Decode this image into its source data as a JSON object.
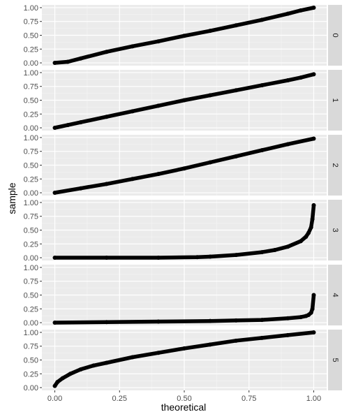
{
  "chart_data": {
    "type": "line",
    "subtype": "qq-plot",
    "xlabel": "theoretical",
    "ylabel": "sample",
    "xlim": [
      0,
      1
    ],
    "x_ticks": [
      0.0,
      0.25,
      0.5,
      0.75,
      1.0
    ],
    "x_tick_labels": [
      "0.00",
      "0.25",
      "0.50",
      "0.75",
      "1.00"
    ],
    "y_ticks": [
      0.0,
      0.25,
      0.5,
      0.75,
      1.0
    ],
    "y_tick_labels": [
      "0.00",
      "0.25",
      "0.50",
      "0.75",
      "1.00"
    ],
    "grid": true,
    "facets": [
      {
        "label": "0",
        "ylim": [
          0,
          1.0
        ],
        "series": {
          "x": [
            0,
            0.05,
            0.1,
            0.2,
            0.3,
            0.4,
            0.5,
            0.6,
            0.7,
            0.8,
            0.9,
            0.95,
            1.0
          ],
          "y": [
            0.0,
            0.02,
            0.08,
            0.2,
            0.3,
            0.39,
            0.49,
            0.58,
            0.68,
            0.78,
            0.89,
            0.95,
            1.0
          ]
        }
      },
      {
        "label": "1",
        "ylim": [
          0,
          1.0
        ],
        "series": {
          "x": [
            0,
            0.05,
            0.1,
            0.2,
            0.3,
            0.4,
            0.5,
            0.6,
            0.7,
            0.8,
            0.9,
            0.95,
            1.0
          ],
          "y": [
            0.0,
            0.05,
            0.1,
            0.2,
            0.3,
            0.4,
            0.5,
            0.59,
            0.68,
            0.77,
            0.86,
            0.91,
            0.97
          ]
        }
      },
      {
        "label": "2",
        "ylim": [
          0,
          1.0
        ],
        "series": {
          "x": [
            0,
            0.1,
            0.2,
            0.3,
            0.4,
            0.5,
            0.6,
            0.7,
            0.8,
            0.9,
            1.0
          ],
          "y": [
            0.0,
            0.08,
            0.16,
            0.25,
            0.34,
            0.44,
            0.55,
            0.66,
            0.77,
            0.88,
            0.98
          ]
        }
      },
      {
        "label": "3",
        "ylim": [
          0,
          1.0
        ],
        "series": {
          "x": [
            0,
            0.2,
            0.4,
            0.55,
            0.6,
            0.7,
            0.8,
            0.85,
            0.9,
            0.95,
            0.97,
            0.98,
            0.99,
            0.995,
            1.0
          ],
          "y": [
            0.0,
            0.0,
            0.0,
            0.01,
            0.02,
            0.05,
            0.1,
            0.14,
            0.2,
            0.3,
            0.38,
            0.45,
            0.55,
            0.7,
            0.95
          ]
        }
      },
      {
        "label": "4",
        "ylim": [
          0,
          1.0
        ],
        "series": {
          "x": [
            0,
            0.2,
            0.4,
            0.6,
            0.7,
            0.8,
            0.9,
            0.95,
            0.97,
            0.98,
            0.99,
            0.995,
            1.0
          ],
          "y": [
            0.0,
            0.01,
            0.02,
            0.03,
            0.04,
            0.05,
            0.08,
            0.1,
            0.12,
            0.14,
            0.18,
            0.25,
            0.5
          ]
        }
      },
      {
        "label": "5",
        "ylim": [
          0,
          1.0
        ],
        "series": {
          "x": [
            0,
            0.01,
            0.03,
            0.06,
            0.1,
            0.15,
            0.2,
            0.3,
            0.4,
            0.5,
            0.6,
            0.7,
            0.8,
            0.9,
            1.0
          ],
          "y": [
            0.03,
            0.1,
            0.17,
            0.25,
            0.33,
            0.4,
            0.45,
            0.55,
            0.63,
            0.71,
            0.78,
            0.85,
            0.9,
            0.95,
            1.0
          ]
        }
      }
    ]
  }
}
